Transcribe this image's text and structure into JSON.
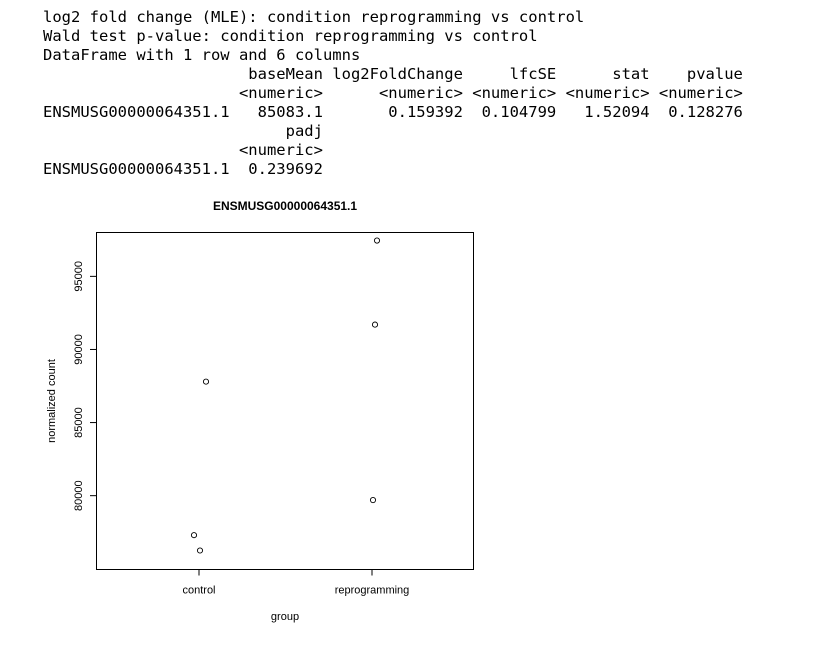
{
  "console": {
    "lines": [
      "log2 fold change (MLE): condition reprogramming vs control",
      "Wald test p-value: condition reprogramming vs control",
      "DataFrame with 1 row and 6 columns",
      "                      baseMean log2FoldChange     lfcSE      stat    pvalue",
      "                     <numeric>      <numeric> <numeric> <numeric> <numeric>",
      "ENSMUSG00000064351.1   85083.1       0.159392  0.104799   1.52094  0.128276",
      "                          padj",
      "                     <numeric>",
      "ENSMUSG00000064351.1  0.239692"
    ]
  },
  "chart_data": {
    "type": "scatter",
    "title": "ENSMUSG00000064351.1",
    "xlabel": "group",
    "ylabel": "normalized count",
    "categories": [
      "control",
      "reprogramming"
    ],
    "yticks": [
      80000,
      85000,
      90000,
      95000
    ],
    "ylim": [
      74950,
      98000
    ],
    "grid": false,
    "points": [
      {
        "group": "control",
        "y": 87800
      },
      {
        "group": "control",
        "y": 77300
      },
      {
        "group": "control",
        "y": 76250
      },
      {
        "group": "reprogramming",
        "y": 97450
      },
      {
        "group": "reprogramming",
        "y": 91700
      },
      {
        "group": "reprogramming",
        "y": 79700
      }
    ]
  }
}
